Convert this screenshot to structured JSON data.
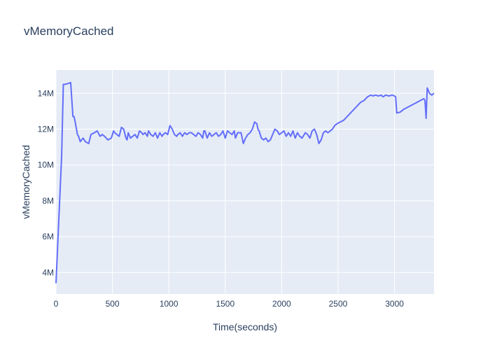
{
  "chart_data": {
    "type": "line",
    "title": "vMemoryCached",
    "xlabel": "Time(seconds)",
    "ylabel": "vMemoryCached",
    "xlim": [
      0,
      3350
    ],
    "ylim": [
      2800000,
      15300000
    ],
    "xticks": [
      0,
      500,
      1000,
      1500,
      2000,
      2500,
      3000
    ],
    "xtick_labels": [
      "0",
      "500",
      "1000",
      "1500",
      "2000",
      "2500",
      "3000"
    ],
    "yticks": [
      4000000,
      6000000,
      8000000,
      10000000,
      12000000,
      14000000
    ],
    "ytick_labels": [
      "4M",
      "6M",
      "8M",
      "10M",
      "12M",
      "14M"
    ],
    "grid": true,
    "plot_bg": "#e5ecf6",
    "line_color": "#636efa",
    "series": [
      {
        "x": [
          0,
          50,
          65,
          80,
          110,
          130,
          150,
          160,
          170,
          190,
          200,
          215,
          240,
          260,
          290,
          310,
          340,
          365,
          390,
          410,
          430,
          460,
          490,
          510,
          520,
          540,
          560,
          580,
          600,
          620,
          630,
          640,
          660,
          680,
          700,
          720,
          740,
          760,
          770,
          790,
          810,
          820,
          840,
          860,
          880,
          900,
          920,
          940,
          950,
          970,
          990,
          1010,
          1030,
          1050,
          1070,
          1080,
          1100,
          1120,
          1140,
          1160,
          1180,
          1200,
          1220,
          1240,
          1260,
          1280,
          1300,
          1310,
          1320,
          1340,
          1360,
          1380,
          1400,
          1420,
          1440,
          1460,
          1480,
          1500,
          1520,
          1540,
          1560,
          1580,
          1590,
          1610,
          1640,
          1660,
          1680,
          1700,
          1720,
          1740,
          1760,
          1780,
          1790,
          1800,
          1820,
          1840,
          1860,
          1880,
          1900,
          1920,
          1940,
          1960,
          1980,
          2000,
          2020,
          2040,
          2060,
          2080,
          2100,
          2120,
          2140,
          2160,
          2180,
          2200,
          2210,
          2230,
          2250,
          2270,
          2290,
          2310,
          2330,
          2350,
          2370,
          2390,
          2410,
          2430,
          2450,
          2470,
          2490,
          2520,
          2550,
          2580,
          2610,
          2640,
          2670,
          2700,
          2730,
          2760,
          2790,
          2810,
          2830,
          2860,
          2880,
          2900,
          2920,
          2950,
          2980,
          3000,
          3010,
          3020,
          3050,
          3080,
          3110,
          3140,
          3170,
          3200,
          3230,
          3260,
          3270,
          3280,
          3290,
          3310,
          3330,
          3350
        ],
        "y": [
          3400000,
          10500000,
          14500000,
          14500000,
          14550000,
          14600000,
          12700000,
          12700000,
          12400000,
          11700000,
          11600000,
          11300000,
          11500000,
          11300000,
          11200000,
          11700000,
          11800000,
          11900000,
          11600000,
          11700000,
          11600000,
          11400000,
          11500000,
          11900000,
          11800000,
          11700000,
          11600000,
          12100000,
          12000000,
          11500000,
          11400000,
          11800000,
          11500000,
          11600000,
          11700000,
          11500000,
          11900000,
          11800000,
          11700000,
          11800000,
          11600000,
          11900000,
          11700000,
          11600000,
          11800000,
          11500000,
          11800000,
          11600000,
          11700000,
          11800000,
          11700000,
          12200000,
          12000000,
          11700000,
          11600000,
          11700000,
          11800000,
          11600000,
          11800000,
          11700000,
          11800000,
          11800000,
          11700000,
          11600000,
          11800000,
          11700000,
          11500000,
          11900000,
          11900000,
          11500000,
          11800000,
          11600000,
          11700000,
          11800000,
          11600000,
          11700000,
          11900000,
          11500000,
          11900000,
          11800000,
          11700000,
          11900000,
          11500000,
          11800000,
          11800000,
          11200000,
          11500000,
          11700000,
          11800000,
          12000000,
          12400000,
          12300000,
          12000000,
          11900000,
          11500000,
          11400000,
          11500000,
          11300000,
          11400000,
          11700000,
          12000000,
          11900000,
          11700000,
          11800000,
          11900000,
          11600000,
          11800000,
          11600000,
          11900000,
          11500000,
          11800000,
          11600000,
          11500000,
          11700000,
          11800000,
          11700000,
          11500000,
          11900000,
          12000000,
          11700000,
          11200000,
          11400000,
          11800000,
          11900000,
          11800000,
          11900000,
          12000000,
          12200000,
          12300000,
          12400000,
          12500000,
          12700000,
          12900000,
          13100000,
          13300000,
          13500000,
          13600000,
          13800000,
          13900000,
          13850000,
          13900000,
          13850000,
          13900000,
          13800000,
          13900000,
          13850000,
          13900000,
          13850000,
          13800000,
          12900000,
          12950000,
          13100000,
          13200000,
          13300000,
          13400000,
          13500000,
          13600000,
          13700000,
          13600000,
          12600000,
          14300000,
          14000000,
          13900000,
          14000000
        ]
      }
    ]
  }
}
